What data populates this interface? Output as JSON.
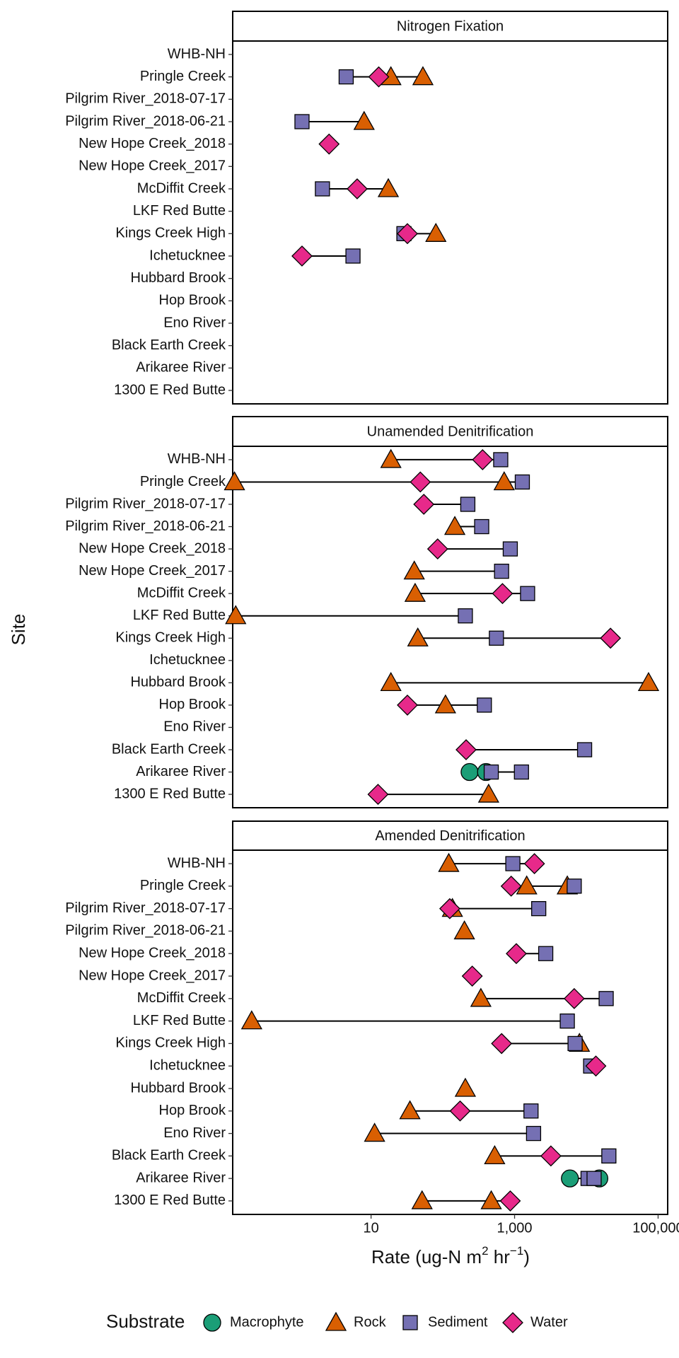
{
  "y_label": "Site",
  "x_label": {
    "text": "Rate (ug-N m",
    "sup1": "2",
    "mid": " hr",
    "sup2": "−1",
    "end": ")"
  },
  "legend_title": "Substrate",
  "xlim": [
    0.118,
    136000
  ],
  "xticks": [
    10,
    {
      "value": 1000,
      "label": "1,000"
    },
    {
      "value": 100000,
      "label": "100,000"
    }
  ],
  "log_x": true,
  "chart_data": [
    {
      "type": "dot",
      "title": "Nitrogen Fixation",
      "categories": [
        "WHB-NH",
        "Pringle Creek",
        "Pilgrim River_2018-07-17",
        "Pilgrim River_2018-06-21",
        "New Hope Creek_2018",
        "New Hope Creek_2017",
        "McDiffit Creek",
        "LKF Red Butte",
        "Kings Creek High",
        "Ichetucknee",
        "Hubbard Brook",
        "Hop Brook",
        "Eno River",
        "Black Earth Creek",
        "Arikaree River",
        "1300 E Red Butte"
      ],
      "series": [
        {
          "name": "Macrophyte",
          "color": "#1b9e77",
          "values": [
            null,
            null,
            null,
            null,
            null,
            null,
            null,
            null,
            null,
            null,
            null,
            null,
            null,
            null,
            null,
            null
          ]
        },
        {
          "name": "Rock",
          "color": "#d95f02",
          "values": [
            null,
            [
              18.9,
              52.8
            ],
            null,
            8.0,
            null,
            null,
            17.4,
            null,
            80,
            null,
            null,
            null,
            null,
            null,
            null,
            null
          ]
        },
        {
          "name": "Sediment",
          "color": "#7570b3",
          "values": [
            null,
            4.5,
            null,
            1.09,
            null,
            null,
            2.1,
            null,
            28.7,
            5.6,
            null,
            null,
            null,
            null,
            null,
            null
          ]
        },
        {
          "name": "Water",
          "color": "#e7298a",
          "values": [
            null,
            12.8,
            null,
            null,
            2.6,
            null,
            6.4,
            null,
            32.1,
            1.09,
            null,
            null,
            null,
            null,
            null,
            null
          ]
        }
      ]
    },
    {
      "type": "dot",
      "title": "Unamended Denitrification",
      "categories": [
        "WHB-NH",
        "Pringle Creek",
        "Pilgrim River_2018-07-17",
        "Pilgrim River_2018-06-21",
        "New Hope Creek_2018",
        "New Hope Creek_2017",
        "McDiffit Creek",
        "LKF Red Butte",
        "Kings Creek High",
        "Ichetucknee",
        "Hubbard Brook",
        "Hop Brook",
        "Eno River",
        "Black Earth Creek",
        "Arikaree River",
        "1300 E Red Butte"
      ],
      "series": [
        {
          "name": "Macrophyte",
          "color": "#1b9e77",
          "values": [
            null,
            null,
            null,
            null,
            null,
            null,
            null,
            null,
            null,
            null,
            null,
            null,
            null,
            null,
            [
              236,
              400
            ],
            null
          ]
        },
        {
          "name": "Rock",
          "color": "#d95f02",
          "values": [
            18.9,
            [
              0.125,
              716
            ],
            null,
            147,
            null,
            40,
            41.1,
            0.13,
            44.8,
            null,
            [
              18.9,
              73600
            ],
            109,
            null,
            null,
            null,
            435
          ]
        },
        {
          "name": "Sediment",
          "color": "#7570b3",
          "values": [
            641,
            1282,
            223,
            348,
            871,
            659,
            1518,
            206,
            558,
            null,
            null,
            379,
            null,
            9460,
            [
              473,
              1247
            ],
            null
          ]
        },
        {
          "name": "Water",
          "color": "#e7298a",
          "values": [
            358,
            48.6,
            54.3,
            null,
            84.7,
            null,
            678,
            null,
            21700,
            null,
            null,
            32.1,
            null,
            211,
            null,
            12.5
          ]
        }
      ]
    },
    {
      "type": "dot",
      "title": "Amended Denitrification",
      "categories": [
        "WHB-NH",
        "Pringle Creek",
        "Pilgrim River_2018-07-17",
        "Pilgrim River_2018-06-21",
        "New Hope Creek_2018",
        "New Hope Creek_2017",
        "McDiffit Creek",
        "LKF Red Butte",
        "Kings Creek High",
        "Ichetucknee",
        "Hubbard Brook",
        "Hop Brook",
        "Eno River",
        "Black Earth Creek",
        "Arikaree River",
        "1300 E Red Butte"
      ],
      "series": [
        {
          "name": "Macrophyte",
          "color": "#1b9e77",
          "values": [
            null,
            null,
            null,
            null,
            null,
            null,
            null,
            null,
            null,
            null,
            null,
            null,
            null,
            null,
            [
              5900,
              15170
            ],
            null
          ]
        },
        {
          "name": "Rock",
          "color": "#d95f02",
          "values": [
            121,
            [
              1476,
              5430
            ],
            136,
            200,
            null,
            null,
            339,
            0.217,
            8010,
            null,
            206,
            34.8,
            11.2,
            528,
            null,
            [
              51.4,
              473
            ]
          ]
        },
        {
          "name": "Sediment",
          "color": "#7570b3",
          "values": [
            946,
            6780,
            2170,
            null,
            2717,
            null,
            18900,
            5430,
            6970,
            11480,
            null,
            1694,
            1840,
            20600,
            [
              10570,
              12830
            ],
            null
          ]
        },
        {
          "name": "Water",
          "color": "#e7298a",
          "values": [
            1892,
            896,
            125,
            null,
            1057,
            257,
            6780,
            null,
            659,
            13580,
            null,
            174,
            null,
            3206,
            null,
            871
          ]
        }
      ]
    }
  ]
}
